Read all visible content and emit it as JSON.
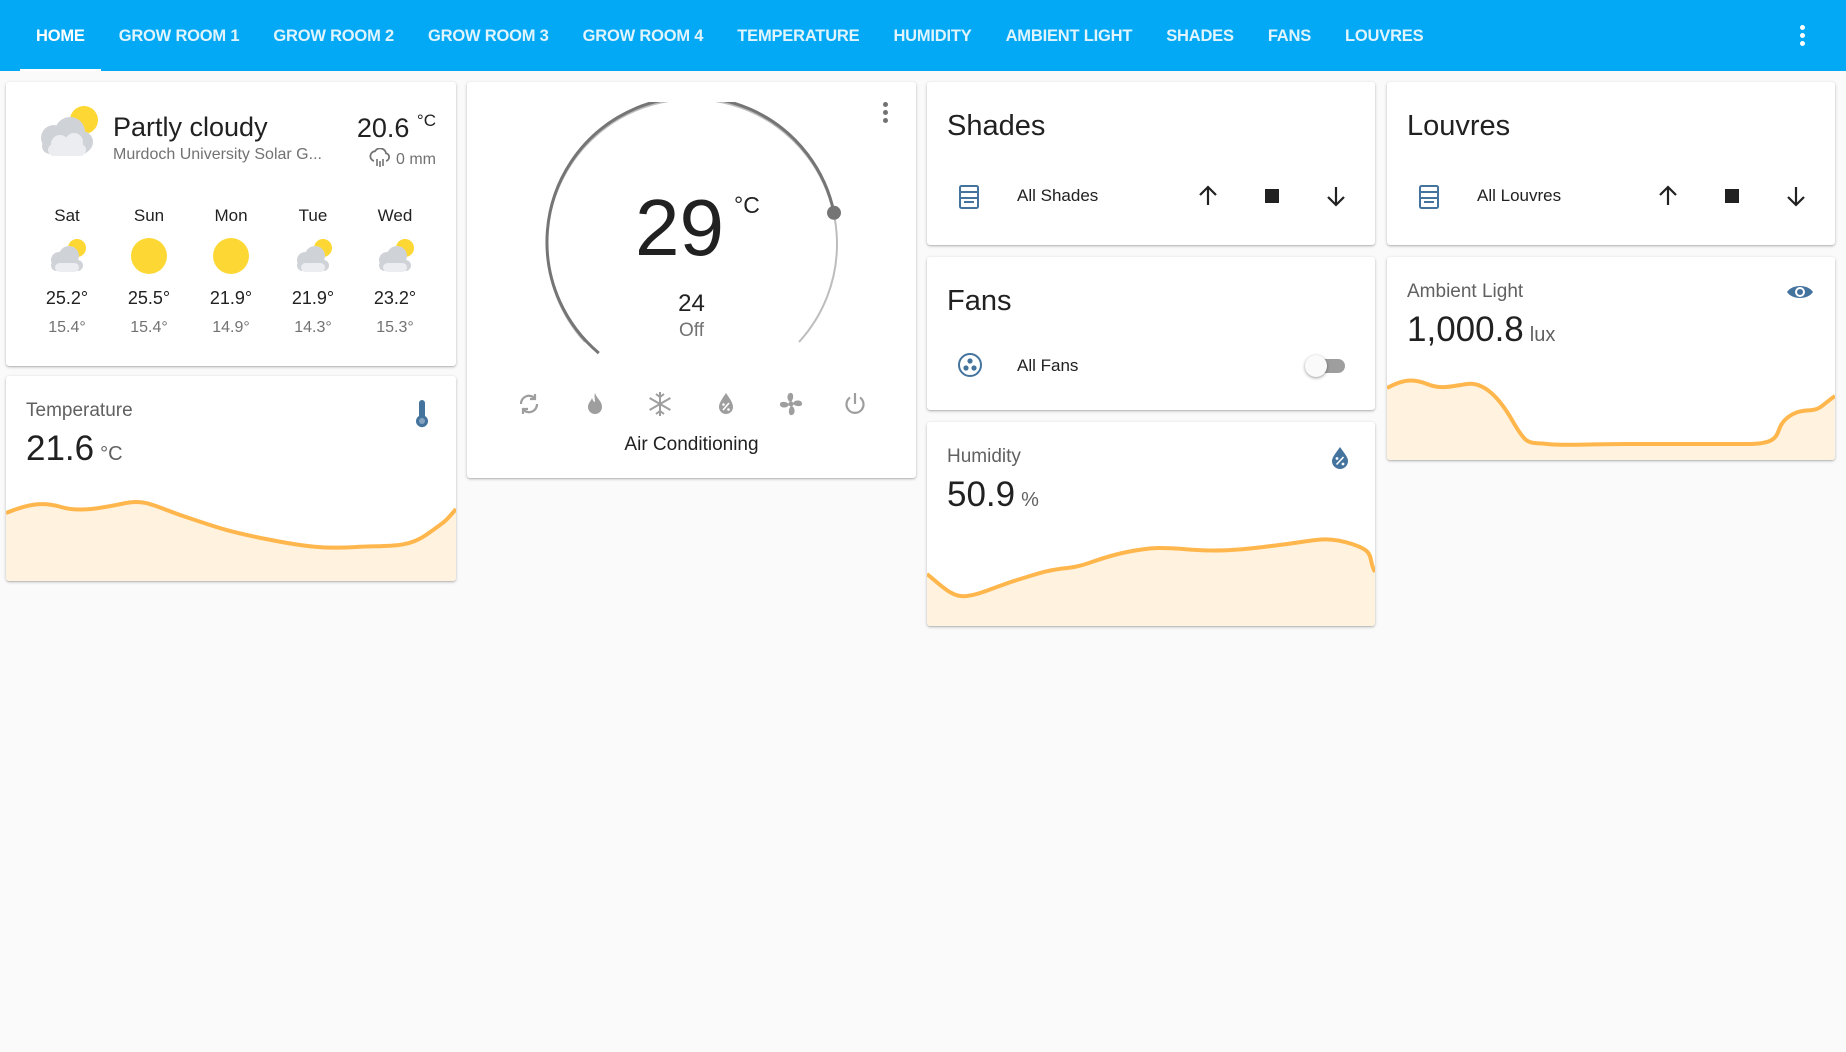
{
  "tabs": [
    "HOME",
    "GROW ROOM 1",
    "GROW ROOM 2",
    "GROW ROOM 3",
    "GROW ROOM 4",
    "TEMPERATURE",
    "HUMIDITY",
    "AMBIENT LIGHT",
    "SHADES",
    "FANS",
    "LOUVRES"
  ],
  "active_tab": "HOME",
  "weather": {
    "condition": "Partly cloudy",
    "location": "Murdoch University Solar G...",
    "temperature": "20.6",
    "temperature_unit": "°C",
    "precipitation": "0 mm",
    "forecast": [
      {
        "day": "Sat",
        "icon": "partly-cloudy-icon",
        "high": "25.2°",
        "low": "15.4°"
      },
      {
        "day": "Sun",
        "icon": "sunny-icon",
        "high": "25.5°",
        "low": "15.4°"
      },
      {
        "day": "Mon",
        "icon": "sunny-icon",
        "high": "21.9°",
        "low": "14.9°"
      },
      {
        "day": "Tue",
        "icon": "partly-cloudy-icon",
        "high": "21.9°",
        "low": "14.3°"
      },
      {
        "day": "Wed",
        "icon": "partly-cloudy-icon",
        "high": "23.2°",
        "low": "15.3°"
      }
    ]
  },
  "temperature_sensor": {
    "name": "Temperature",
    "value": "21.6",
    "unit": "°C",
    "icon": "thermometer-icon"
  },
  "thermostat": {
    "target": "29",
    "unit": "°C",
    "current": "24",
    "state": "Off",
    "name": "Air Conditioning",
    "target_fraction": 0.78,
    "modes": [
      "auto-mode-icon",
      "heat-mode-icon",
      "cool-mode-icon",
      "dry-mode-icon",
      "fan-mode-icon",
      "power-icon"
    ]
  },
  "shades": {
    "title": "Shades",
    "entity": "All Shades",
    "icon": "window-shade-icon"
  },
  "louvres": {
    "title": "Louvres",
    "entity": "All Louvres",
    "icon": "window-shade-icon"
  },
  "fans": {
    "title": "Fans",
    "entity": "All Fans",
    "icon": "fan-icon",
    "on": false
  },
  "humidity_sensor": {
    "name": "Humidity",
    "value": "50.9",
    "unit": "%",
    "icon": "water-percent-icon"
  },
  "ambient_light": {
    "name": "Ambient Light",
    "value": "1,000.8",
    "unit": "lux",
    "icon": "eye-icon"
  },
  "colors": {
    "header": "#03a9f4",
    "accent": "#44739e",
    "graph_line": "#ffb74d",
    "graph_fill": "#fff3e0",
    "sun": "#fdd835"
  }
}
